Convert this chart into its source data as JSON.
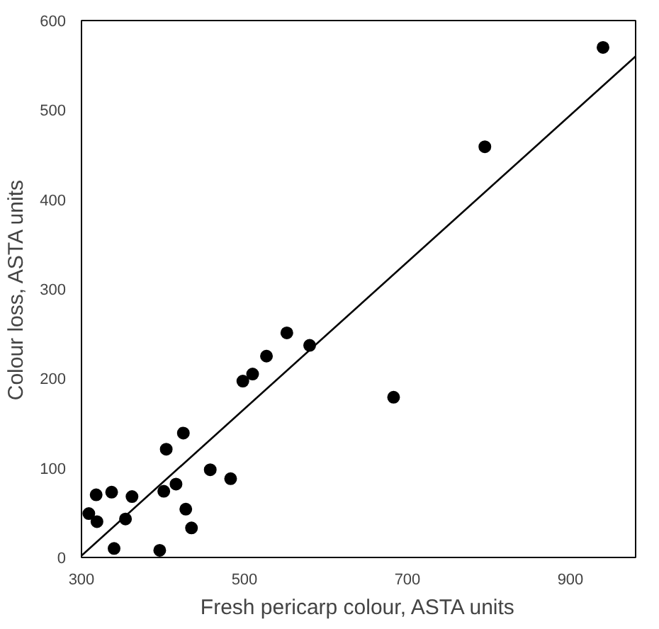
{
  "chart_data": {
    "type": "scatter",
    "xlabel": "Fresh pericarp colour, ASTA units",
    "ylabel": "Colour loss, ASTA units",
    "xlim": [
      300,
      980
    ],
    "ylim": [
      0,
      600
    ],
    "xticks": [
      300,
      500,
      700,
      900
    ],
    "yticks": [
      0,
      100,
      200,
      300,
      400,
      500,
      600
    ],
    "grid": false,
    "series": [
      {
        "marker": "circle",
        "color": "#000000",
        "x": [
          309,
          318,
          319,
          337,
          340,
          354,
          362,
          396,
          401,
          404,
          416,
          425,
          428,
          435,
          458,
          483,
          498,
          510,
          527,
          552,
          580,
          683,
          795,
          940
        ],
        "values": [
          49,
          70,
          40,
          73,
          10,
          43,
          68,
          8,
          74,
          121,
          82,
          139,
          54,
          33,
          98,
          88,
          197,
          205,
          225,
          251,
          237,
          179,
          459,
          570
        ]
      },
      {
        "type": "line",
        "color": "#000000",
        "line_style": "solid",
        "x": [
          300,
          980
        ],
        "values": [
          2,
          560
        ]
      }
    ]
  }
}
